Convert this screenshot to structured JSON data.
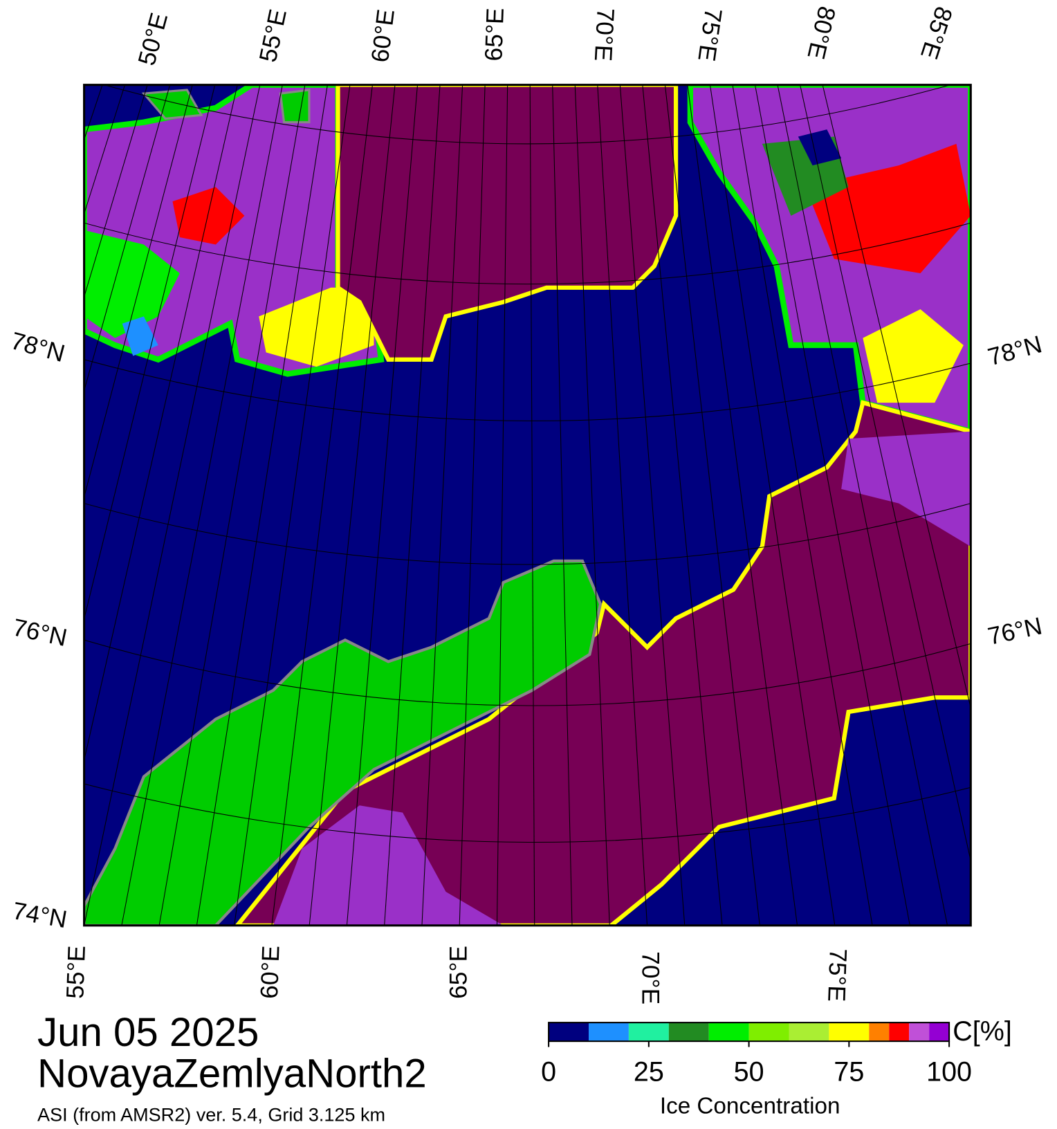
{
  "map": {
    "title": "Jun 05 2025",
    "region": "NovayaZemlyaNorth2",
    "subtitle": "ASI (from AMSR2) ver. 5.4,  Grid 3.125 km",
    "top_lon_labels": [
      "50°E",
      "55°E",
      "60°E",
      "65°E",
      "70°E",
      "75°E",
      "80°E",
      "85°E"
    ],
    "bottom_lon_labels": [
      "55°E",
      "60°E",
      "65°E",
      "70°E",
      "75°E"
    ],
    "left_lat_labels": [
      "78°N",
      "76°N",
      "74°N"
    ],
    "right_lat_labels": [
      "78°N",
      "76°N"
    ]
  },
  "colorbar": {
    "label": "Ice Concentration",
    "unit": "C[%]",
    "lim": [
      0,
      100
    ],
    "bounds": [
      0,
      10,
      20,
      30,
      40,
      50,
      60,
      70,
      80,
      85,
      90,
      95,
      100
    ],
    "colors": [
      "#00007f",
      "#1e90ff",
      "#20f0a0",
      "#228b22",
      "#00ee00",
      "#7fee00",
      "#aaee33",
      "#ffff00",
      "#ff8000",
      "#ff0000",
      "#c050d8",
      "#9400d3"
    ],
    "ticks": [
      0,
      25,
      50,
      75,
      100
    ]
  }
}
